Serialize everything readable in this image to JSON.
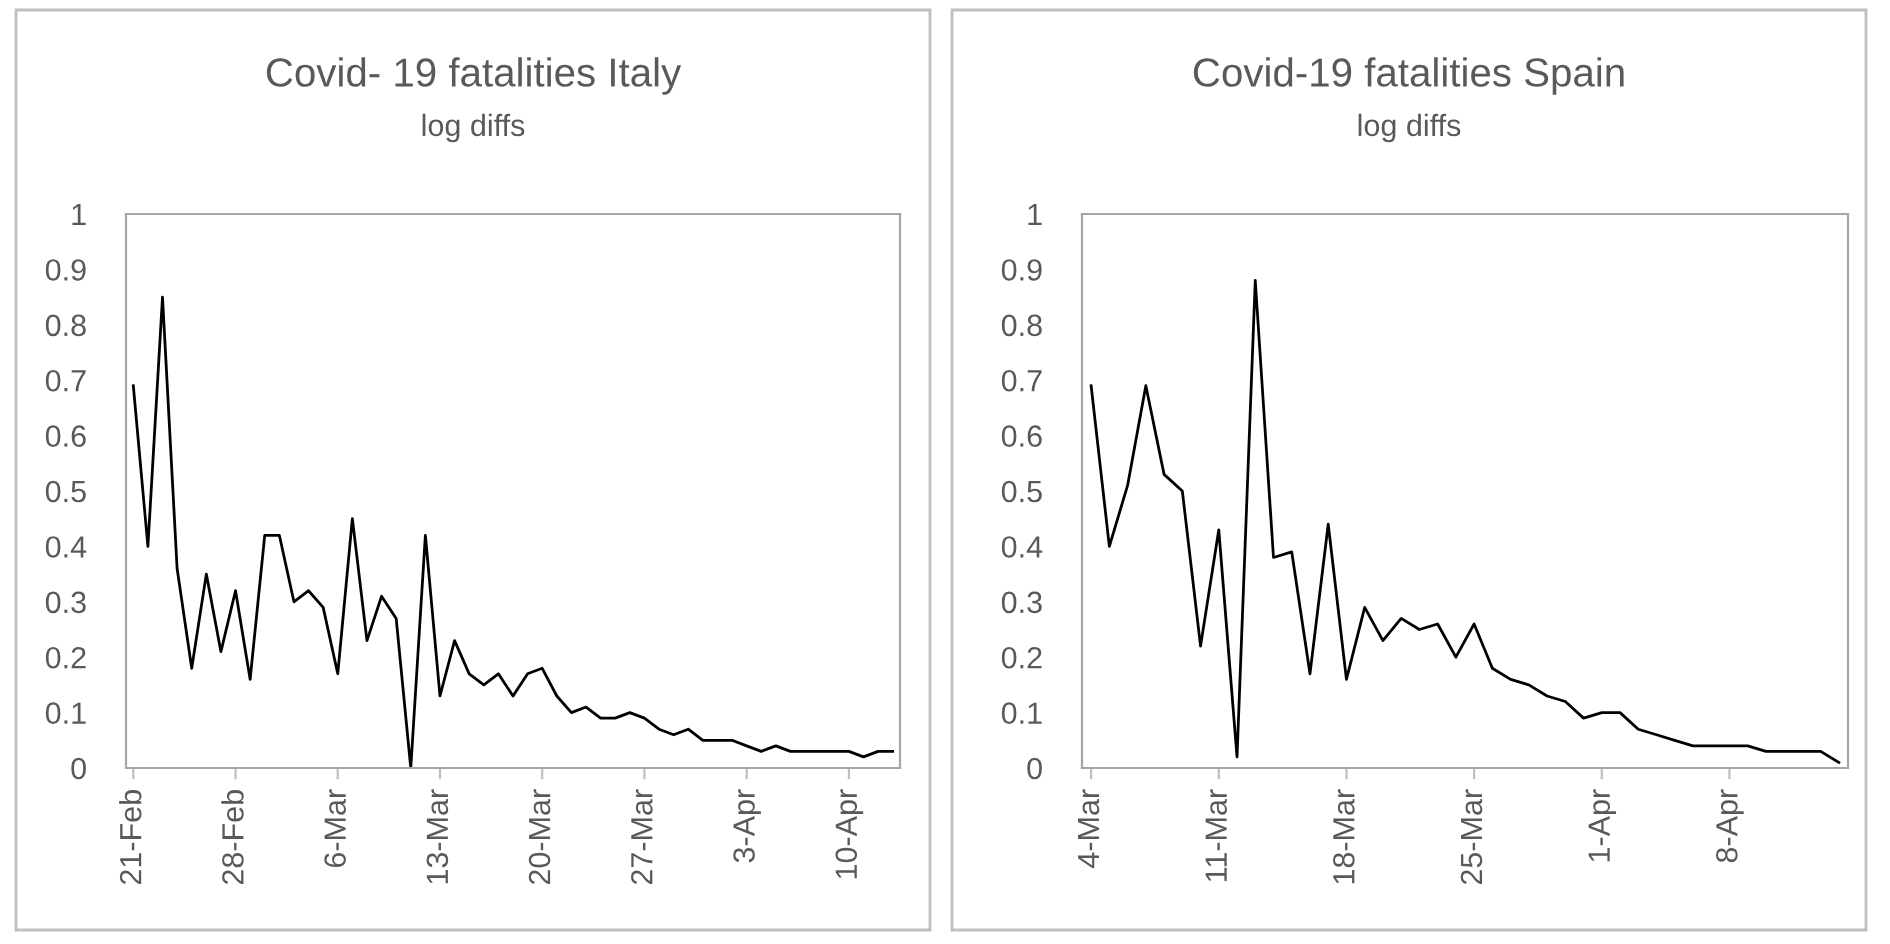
{
  "chart_data": [
    {
      "type": "line",
      "title": "Covid- 19 fatalities Italy",
      "subtitle": "log diffs",
      "categories": [
        "21-Feb",
        null,
        null,
        null,
        null,
        null,
        null,
        "28-Feb",
        null,
        null,
        null,
        null,
        null,
        null,
        "6-Mar",
        null,
        null,
        null,
        null,
        null,
        null,
        "13-Mar",
        null,
        null,
        null,
        null,
        null,
        null,
        "20-Mar",
        null,
        null,
        null,
        null,
        null,
        null,
        "27-Mar",
        null,
        null,
        null,
        null,
        null,
        null,
        "3-Apr",
        null,
        null,
        null,
        null,
        null,
        null,
        "10-Apr",
        null,
        null,
        null
      ],
      "series": [
        {
          "color": "#000000",
          "values": [
            0.69,
            0.4,
            0.85,
            0.36,
            0.18,
            0.35,
            0.21,
            0.32,
            0.16,
            0.42,
            0.42,
            0.3,
            0.32,
            0.29,
            0.17,
            0.45,
            0.23,
            0.31,
            0.27,
            0.0,
            0.42,
            0.13,
            0.23,
            0.17,
            0.15,
            0.17,
            0.13,
            0.17,
            0.18,
            0.13,
            0.1,
            0.11,
            0.09,
            0.09,
            0.1,
            0.09,
            0.07,
            0.06,
            0.07,
            0.05,
            0.05,
            0.05,
            0.04,
            0.03,
            0.04,
            0.03,
            0.03,
            0.03,
            0.03,
            0.03,
            0.02,
            0.03,
            0.03
          ]
        }
      ],
      "ylim": [
        0,
        1
      ],
      "yticks": [
        0,
        0.1,
        0.2,
        0.3,
        0.4,
        0.5,
        0.6,
        0.7,
        0.8,
        0.9,
        1
      ],
      "grid": false,
      "legend": false,
      "marker": "none",
      "line_style": "solid"
    },
    {
      "type": "line",
      "title": "Covid-19 fatalities Spain",
      "subtitle": "log diffs",
      "categories": [
        "4-Mar",
        null,
        null,
        null,
        null,
        null,
        null,
        "11-Mar",
        null,
        null,
        null,
        null,
        null,
        null,
        "18-Mar",
        null,
        null,
        null,
        null,
        null,
        null,
        "25-Mar",
        null,
        null,
        null,
        null,
        null,
        null,
        "1-Apr",
        null,
        null,
        null,
        null,
        null,
        null,
        "8-Apr",
        null,
        null,
        null,
        null,
        null,
        null
      ],
      "series": [
        {
          "color": "#000000",
          "values": [
            0.69,
            0.4,
            0.51,
            0.69,
            0.53,
            0.5,
            0.22,
            0.43,
            0.02,
            0.88,
            0.38,
            0.39,
            0.17,
            0.44,
            0.16,
            0.29,
            0.23,
            0.27,
            0.25,
            0.26,
            0.2,
            0.26,
            0.18,
            0.16,
            0.15,
            0.13,
            0.12,
            0.09,
            0.1,
            0.1,
            0.07,
            0.06,
            0.05,
            0.04,
            0.04,
            0.04,
            0.04,
            0.03,
            0.03,
            0.03,
            0.03,
            0.01
          ]
        }
      ],
      "ylim": [
        0,
        1
      ],
      "yticks": [
        0,
        0.1,
        0.2,
        0.3,
        0.4,
        0.5,
        0.6,
        0.7,
        0.8,
        0.9,
        1
      ],
      "grid": false,
      "legend": false,
      "marker": "none",
      "line_style": "solid"
    }
  ]
}
